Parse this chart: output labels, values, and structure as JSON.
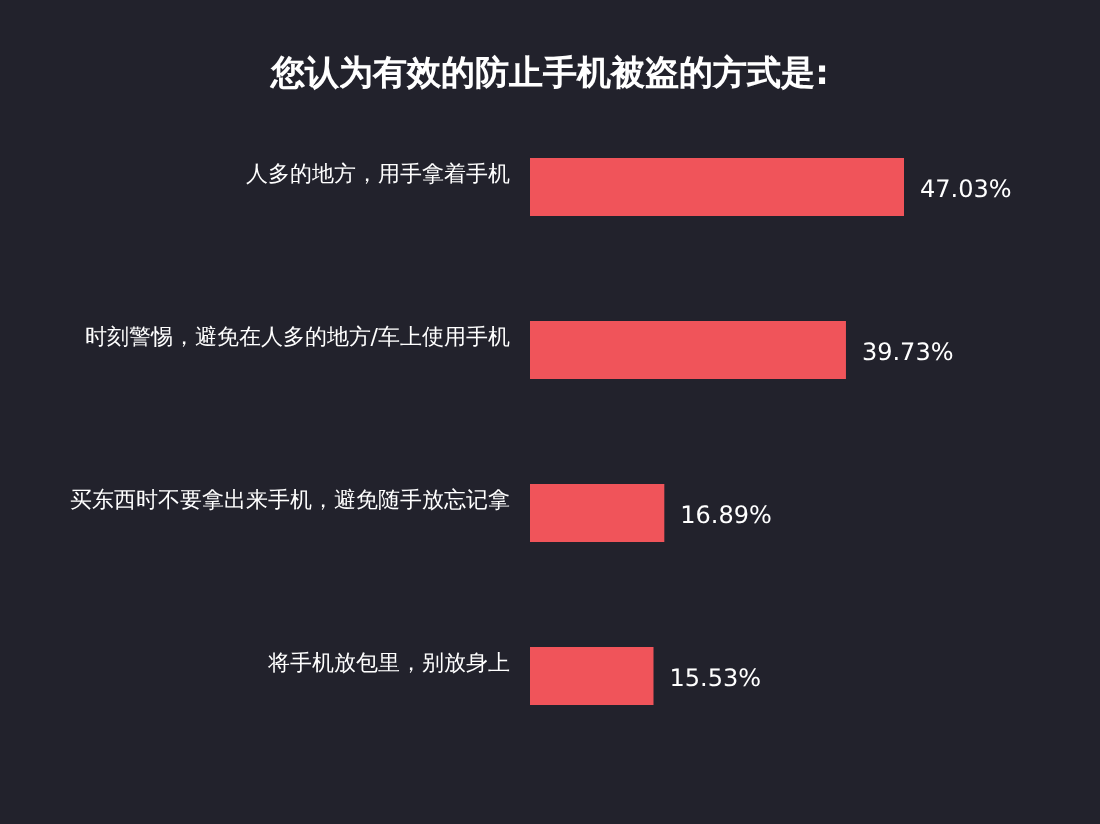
{
  "chart_data": {
    "type": "bar",
    "orientation": "horizontal",
    "title": "您认为有效的防止手机被盗的方式是:",
    "categories": [
      "人多的地方，用手拿着手机",
      "时刻警惕，避免在人多的地方/车上使用手机",
      "买东西时不要拿出来手机，避免随手放忘记拿",
      "将手机放包里，别放身上"
    ],
    "values": [
      47.03,
      39.73,
      16.89,
      15.53
    ],
    "value_labels": [
      "47.03%",
      "39.73%",
      "16.89%",
      "15.53%"
    ],
    "color": "#f0545a"
  }
}
